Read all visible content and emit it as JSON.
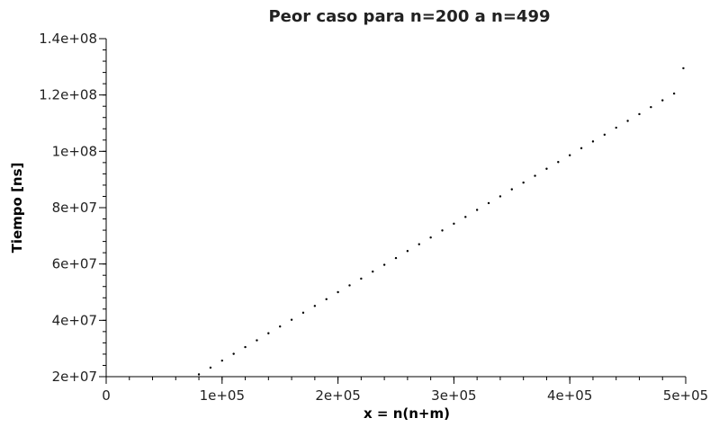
{
  "chart_data": {
    "type": "scatter",
    "title": "Peor caso para n=200 a n=499",
    "xlabel": "x = n(n+m)",
    "ylabel": "Tiempo [ns]",
    "xlim": [
      0,
      500000
    ],
    "ylim": [
      20000000,
      140000000
    ],
    "x_ticks": [
      {
        "value": 0,
        "label": "0"
      },
      {
        "value": 100000,
        "label": "1e+05"
      },
      {
        "value": 200000,
        "label": "2e+05"
      },
      {
        "value": 300000,
        "label": "3e+05"
      },
      {
        "value": 400000,
        "label": "4e+05"
      },
      {
        "value": 500000,
        "label": "5e+05"
      }
    ],
    "y_ticks": [
      {
        "value": 20000000,
        "label": "2e+07"
      },
      {
        "value": 40000000,
        "label": "4e+07"
      },
      {
        "value": 60000000,
        "label": "6e+07"
      },
      {
        "value": 80000000,
        "label": "8e+07"
      },
      {
        "value": 100000000,
        "label": "1e+08"
      },
      {
        "value": 120000000,
        "label": "1.2e+08"
      },
      {
        "value": 140000000,
        "label": "1.4e+08"
      }
    ],
    "x_minor_step": 20000,
    "y_minor_step": 4000000,
    "grid": false,
    "marker_color": "#000000",
    "series": [
      {
        "x": [
          80000,
          90000,
          100000,
          110000,
          120000,
          130000,
          140000,
          150000,
          160000,
          170000,
          180000,
          190000,
          200000,
          210000,
          220000,
          230000,
          240000,
          250000,
          260000,
          270000,
          280000,
          290000,
          300000,
          310000,
          320000,
          330000,
          340000,
          350000,
          360000,
          370000,
          380000,
          390000,
          400000,
          410000,
          420000,
          430000,
          440000,
          450000,
          460000,
          470000,
          480000,
          490000,
          498000
        ],
        "y": [
          20800000,
          23200000,
          25700000,
          28100000,
          30500000,
          32900000,
          35400000,
          37800000,
          40200000,
          42700000,
          45100000,
          47500000,
          50000000,
          52400000,
          54800000,
          57300000,
          59700000,
          62100000,
          64600000,
          67000000,
          69400000,
          71900000,
          74300000,
          76700000,
          79200000,
          81600000,
          84000000,
          86500000,
          88900000,
          91300000,
          93800000,
          96200000,
          98600000,
          101100000,
          103500000,
          105900000,
          108400000,
          110800000,
          113200000,
          115700000,
          118100000,
          120500000,
          129500000
        ]
      }
    ]
  }
}
